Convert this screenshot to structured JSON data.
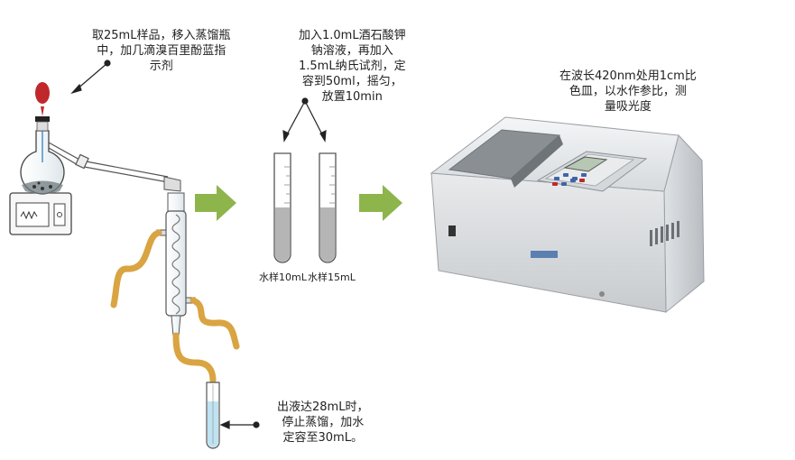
{
  "notes": {
    "sample_prep": [
      "取25mL样品，移入蒸馏瓶",
      "中，加几滴溴百里酚蓝指",
      "示剂"
    ],
    "reagents": [
      "加入1.0mL酒石酸钾",
      "钠溶液，再加入",
      "1.5mL纳氏试剂，定",
      "容到50ml，摇匀，",
      "放置10min"
    ],
    "measure": [
      "在波长420nm处用1cm比",
      "色皿，以水作参比，测",
      "量吸光度"
    ],
    "distill": [
      "出液达28mL时，",
      "停止蒸馏，加水",
      "定容至30mL。"
    ]
  },
  "tube_labels": {
    "left": "水样10mL",
    "right": "水样15mL"
  },
  "colors": {
    "arrow_green": "#8db54b",
    "hose_gold": "#d9a441",
    "bulb_red": "#c0282b",
    "liquid_gray": "#b5b5b5",
    "liquid_blue": "#bfe3f2"
  }
}
